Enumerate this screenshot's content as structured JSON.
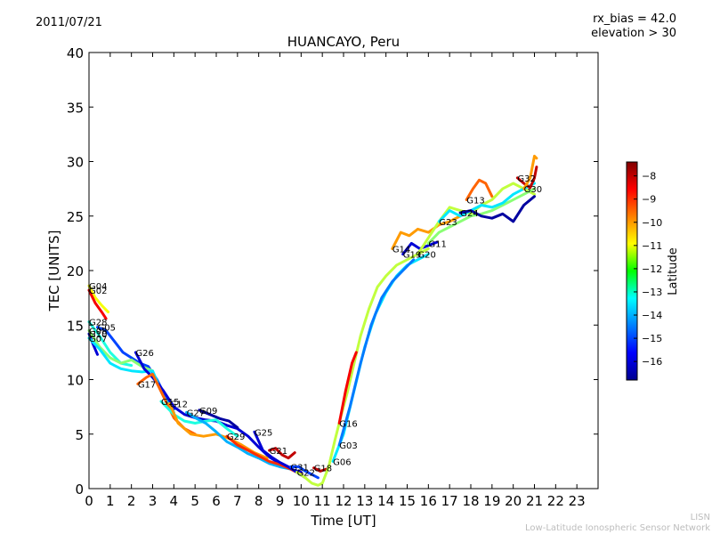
{
  "header": {
    "date": "2011/07/21",
    "rx_bias": "rx_bias = 42.0",
    "elevation": "elevation > 30"
  },
  "footer": {
    "org_short": "LISN",
    "org_full": "Low-Latitude Ionospheric Sensor Network"
  },
  "colors": {
    "background": "#ffffff",
    "axes": "#000000",
    "footer_text": "#bdbdbd"
  },
  "chart_data": {
    "type": "line",
    "title": "HUANCAYO, Peru",
    "xlabel": "Time [UT]",
    "ylabel": "TEC [UNITS]",
    "xlim": [
      0,
      24
    ],
    "ylim": [
      0,
      40
    ],
    "xticks": [
      0,
      1,
      2,
      3,
      4,
      5,
      6,
      7,
      8,
      9,
      10,
      11,
      12,
      13,
      14,
      15,
      16,
      17,
      18,
      19,
      20,
      21,
      22,
      23
    ],
    "yticks": [
      0,
      5,
      10,
      15,
      20,
      25,
      30,
      35,
      40
    ],
    "grid": false,
    "colorbar": {
      "label": "Latitude",
      "min": -16.8,
      "max": -7.4,
      "ticks": [
        -8,
        -9,
        -10,
        -11,
        -12,
        -13,
        -14,
        -15,
        -16
      ]
    },
    "series": [
      {
        "name": "G04",
        "lat": -11.0,
        "t": [
          0,
          0.3,
          0.6,
          0.9
        ],
        "tec": [
          18.6,
          17.5,
          16.8,
          16.2
        ]
      },
      {
        "name": "G02",
        "lat": -8.5,
        "t": [
          0,
          0.3,
          0.6,
          0.8
        ],
        "tec": [
          18.2,
          17.0,
          16.2,
          15.6
        ]
      },
      {
        "name": "G28",
        "lat": -13.0,
        "t": [
          0,
          0.5,
          1.0,
          1.5,
          2.0
        ],
        "tec": [
          15.3,
          14.0,
          12.5,
          11.5,
          11.3
        ]
      },
      {
        "name": "G10",
        "lat": -16.0,
        "t": [
          0,
          0.2,
          0.4
        ],
        "tec": [
          14.2,
          13.2,
          12.3
        ]
      },
      {
        "name": "G05",
        "lat": -15.0,
        "t": [
          0.4,
          0.8,
          1.2,
          1.6,
          2.0,
          2.4,
          2.8,
          3.2,
          3.6,
          4.0
        ],
        "tec": [
          14.8,
          14.5,
          13.5,
          12.5,
          12.0,
          11.5,
          11.2,
          10.0,
          8.5,
          7.3
        ]
      },
      {
        "name": "G08",
        "lat": -12.0,
        "t": [
          0,
          0.5,
          1.0,
          1.5,
          2.0,
          2.5,
          3.0
        ],
        "tec": [
          14.5,
          13.0,
          12.0,
          11.5,
          11.8,
          11.2,
          10.8
        ]
      },
      {
        "name": "G07",
        "lat": -13.5,
        "t": [
          0,
          0.5,
          1.0,
          1.5,
          2.0,
          2.5,
          3.0,
          3.5,
          4.0
        ],
        "tec": [
          13.8,
          12.8,
          11.5,
          11.0,
          10.8,
          10.7,
          10.8,
          8.5,
          7.0
        ]
      },
      {
        "name": "G26",
        "lat": -16.0,
        "t": [
          2.2,
          2.6,
          3.0,
          3.5,
          4.0,
          4.5,
          5.0,
          5.5,
          6.0,
          6.5,
          7.0,
          7.5,
          8.0,
          8.5,
          9.0,
          9.5,
          10.0
        ],
        "tec": [
          12.5,
          11.0,
          10.2,
          9.0,
          7.5,
          6.8,
          6.5,
          6.3,
          6.2,
          5.8,
          5.5,
          4.8,
          3.8,
          2.9,
          2.3,
          1.8,
          1.5
        ]
      },
      {
        "name": "G17",
        "lat": -9.5,
        "t": [
          2.3,
          2.7,
          3.0,
          3.5,
          4.0,
          4.5,
          5.0
        ],
        "tec": [
          9.6,
          10.2,
          10.5,
          8.5,
          6.5,
          5.5,
          5.0
        ]
      },
      {
        "name": "G15",
        "lat": -13.0,
        "t": [
          3.4,
          4.0,
          4.5,
          5.0,
          5.5,
          6.0,
          6.5,
          7.0
        ],
        "tec": [
          8.0,
          6.8,
          6.2,
          6.0,
          6.2,
          6.3,
          5.5,
          4.8
        ]
      },
      {
        "name": "G12",
        "lat": -10.0,
        "t": [
          3.8,
          4.2,
          4.8,
          5.4,
          6.0,
          6.6,
          7.2,
          7.8,
          8.4
        ],
        "tec": [
          7.8,
          6.0,
          5.0,
          4.8,
          5.0,
          4.6,
          4.0,
          3.3,
          2.8
        ]
      },
      {
        "name": "G27",
        "lat": -14.0,
        "t": [
          4.6,
          5.0,
          5.5,
          6.0,
          6.5,
          7.0,
          7.5,
          8.0,
          8.5,
          9.0,
          9.5
        ],
        "tec": [
          7.0,
          6.5,
          6.0,
          5.2,
          4.3,
          3.8,
          3.2,
          2.8,
          2.3,
          2.0,
          1.8
        ]
      },
      {
        "name": "G09",
        "lat": -16.5,
        "t": [
          5.2,
          5.7,
          6.2,
          6.6,
          7.0
        ],
        "tec": [
          7.2,
          6.8,
          6.4,
          6.2,
          5.6
        ]
      },
      {
        "name": "G29",
        "lat": -9.0,
        "t": [
          6.5,
          7.0,
          7.5,
          8.0,
          8.5,
          9.0,
          9.5,
          10.0
        ],
        "tec": [
          4.8,
          4.0,
          3.5,
          3.0,
          2.5,
          2.2,
          1.8,
          1.3
        ]
      },
      {
        "name": "G25",
        "lat": -16.0,
        "t": [
          7.8,
          8.2,
          8.6,
          9.0,
          9.4,
          9.8,
          10.2
        ],
        "tec": [
          5.2,
          3.5,
          2.9,
          2.4,
          2.0,
          1.5,
          1.0
        ]
      },
      {
        "name": "G21",
        "lat": -8.0,
        "t": [
          8.5,
          8.8,
          9.1,
          9.4,
          9.7
        ],
        "tec": [
          3.5,
          3.7,
          3.1,
          2.8,
          3.3
        ]
      },
      {
        "name": "G31",
        "lat": -15.0,
        "t": [
          9.5,
          9.9,
          10.2,
          10.5,
          10.8
        ],
        "tec": [
          2.0,
          2.0,
          1.6,
          1.3,
          1.0
        ]
      },
      {
        "name": "G18",
        "lat": -8.0,
        "t": [
          10.6,
          10.9,
          11.2
        ],
        "tec": [
          1.9,
          1.6,
          1.8
        ]
      },
      {
        "name": "G22",
        "lat": -11.5,
        "t": [
          9.8,
          10.2,
          10.5,
          10.8,
          11.0,
          11.3,
          11.6,
          11.9,
          12.2,
          12.5,
          12.8,
          13.2,
          13.6,
          14.0,
          14.5,
          15.0,
          15.5,
          16.0
        ],
        "tec": [
          1.5,
          1.0,
          0.5,
          0.3,
          0.5,
          2.0,
          4.5,
          6.8,
          9.0,
          11.5,
          14.0,
          16.5,
          18.5,
          19.5,
          20.5,
          21.0,
          21.5,
          22.0
        ]
      },
      {
        "name": "G16",
        "lat": -8.5,
        "t": [
          11.8,
          12.1,
          12.4,
          12.6
        ],
        "tec": [
          6.0,
          9.0,
          11.5,
          12.5
        ]
      },
      {
        "name": "G06",
        "lat": -13.5,
        "t": [
          11.5,
          12.0,
          12.5,
          13.0,
          13.5,
          14.0,
          14.5,
          15.0,
          15.5,
          16.0
        ],
        "tec": [
          2.5,
          5.0,
          9.0,
          13.0,
          16.0,
          18.0,
          19.5,
          20.5,
          21.0,
          21.5
        ]
      },
      {
        "name": "G03",
        "lat": -14.5,
        "t": [
          11.8,
          12.3,
          12.8,
          13.3,
          13.8,
          14.3,
          14.8,
          15.3
        ],
        "tec": [
          4.0,
          7.5,
          11.5,
          15.0,
          17.5,
          19.0,
          20.0,
          21.0
        ]
      },
      {
        "name": "G14",
        "lat": -10.0,
        "t": [
          14.3,
          14.7,
          15.1,
          15.5,
          16.0,
          16.5,
          17.0,
          17.5
        ],
        "tec": [
          22.0,
          23.5,
          23.2,
          23.8,
          23.5,
          24.2,
          24.5,
          25.0
        ]
      },
      {
        "name": "G19",
        "lat": -16.0,
        "t": [
          14.8,
          15.2,
          15.6,
          16.0,
          16.4
        ],
        "tec": [
          21.5,
          22.5,
          22.0,
          22.3,
          22.6
        ]
      },
      {
        "name": "G13",
        "lat": -9.5,
        "t": [
          17.8,
          18.1,
          18.4,
          18.7,
          19.0
        ],
        "tec": [
          26.5,
          27.5,
          28.3,
          28.0,
          26.8
        ]
      },
      {
        "name": "G20",
        "lat": -11.5,
        "t": [
          15.5,
          16.0,
          16.5,
          17.0,
          17.5,
          18.0,
          18.5,
          19.0,
          19.5,
          20.0,
          20.5,
          21.0
        ],
        "tec": [
          21.5,
          23.0,
          24.5,
          25.8,
          25.5,
          25.2,
          26.0,
          26.5,
          27.5,
          28.0,
          27.5,
          27.0
        ]
      },
      {
        "name": "G11",
        "lat": -12.0,
        "t": [
          16.0,
          16.5,
          17.0,
          17.5,
          18.0,
          18.5,
          19.0,
          19.5,
          20.0,
          20.5,
          21.0
        ],
        "tec": [
          22.5,
          23.5,
          24.0,
          24.5,
          25.0,
          25.2,
          25.5,
          26.0,
          26.5,
          27.0,
          27.5
        ]
      },
      {
        "name": "G23",
        "lat": -13.5,
        "t": [
          16.5,
          17.0,
          17.5,
          18.0,
          18.5,
          19.0,
          19.5,
          20.0,
          20.5,
          21.0
        ],
        "tec": [
          24.5,
          25.5,
          25.0,
          25.5,
          26.0,
          25.8,
          26.2,
          27.0,
          27.5,
          28.0
        ]
      },
      {
        "name": "G24",
        "lat": -16.5,
        "t": [
          17.5,
          18.0,
          18.5,
          19.0,
          19.5,
          20.0,
          20.5,
          21.0
        ],
        "tec": [
          25.3,
          25.5,
          25.0,
          24.8,
          25.2,
          24.5,
          26.0,
          26.8
        ]
      },
      {
        "name": "G32",
        "lat": -8.0,
        "t": [
          20.2,
          20.5,
          20.8,
          21.0,
          21.1
        ],
        "tec": [
          28.5,
          28.0,
          27.6,
          28.5,
          29.5
        ]
      },
      {
        "name": "G30",
        "lat": -10.0,
        "t": [
          20.5,
          20.8,
          21.0,
          21.1
        ],
        "tec": [
          27.5,
          28.5,
          30.5,
          30.3
        ]
      }
    ]
  }
}
